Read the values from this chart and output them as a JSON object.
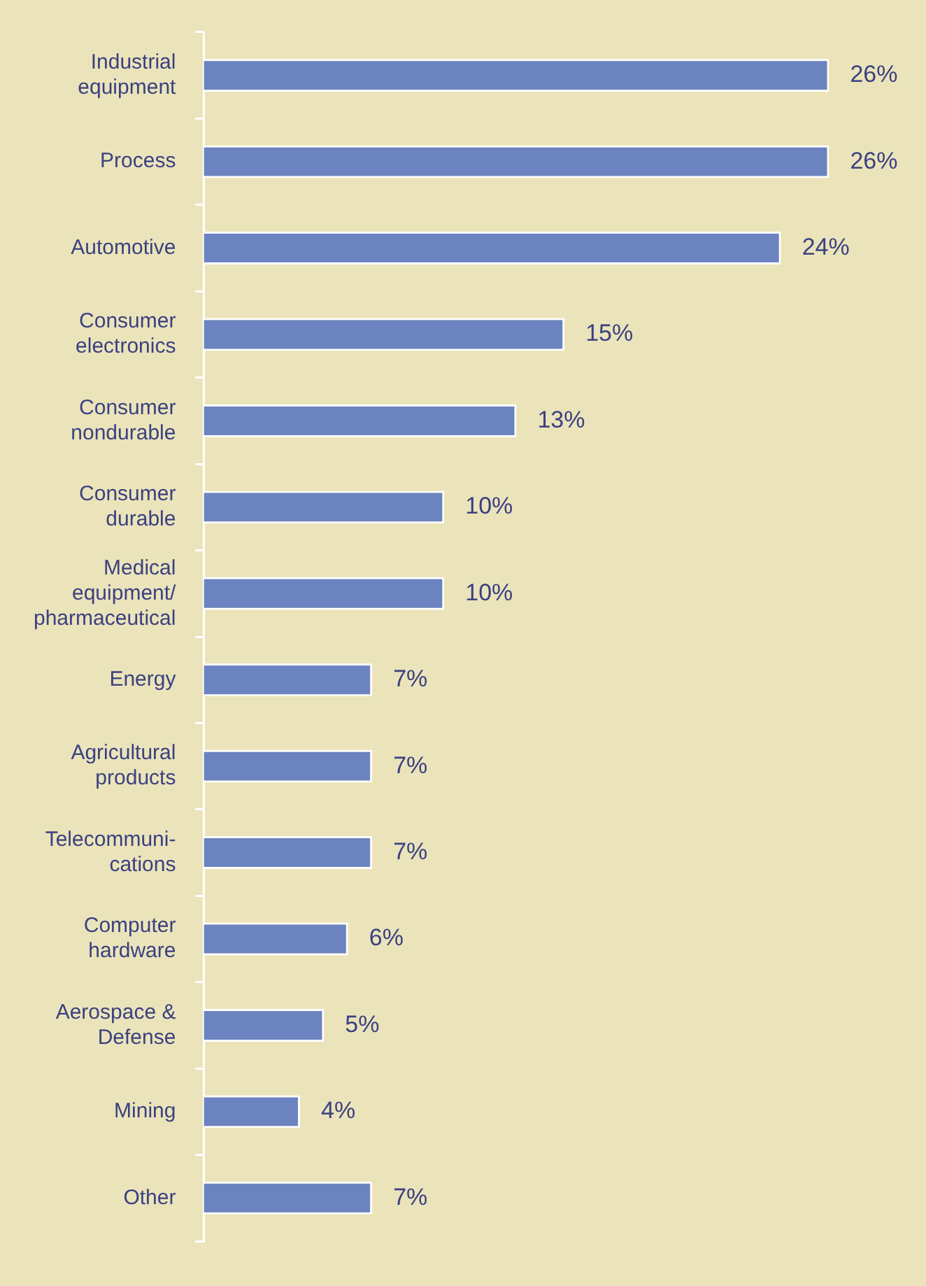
{
  "chart_data": {
    "type": "bar",
    "orientation": "horizontal",
    "categories": [
      "Industrial equipment",
      "Process",
      "Automotive",
      "Consumer electronics",
      "Consumer nondurable",
      "Consumer durable",
      "Medical equipment/pharmaceutical",
      "Energy",
      "Agricultural products",
      "Telecommuni-cations",
      "Computer hardware",
      "Aerospace & Defense",
      "Mining",
      "Other"
    ],
    "values": [
      26,
      26,
      24,
      15,
      13,
      10,
      10,
      7,
      7,
      7,
      6,
      5,
      4,
      7
    ],
    "value_labels": [
      "26%",
      "26%",
      "24%",
      "15%",
      "13%",
      "10%",
      "10%",
      "7%",
      "7%",
      "7%",
      "6%",
      "5%",
      "4%",
      "7%"
    ],
    "color": "#6b83bf"
  }
}
